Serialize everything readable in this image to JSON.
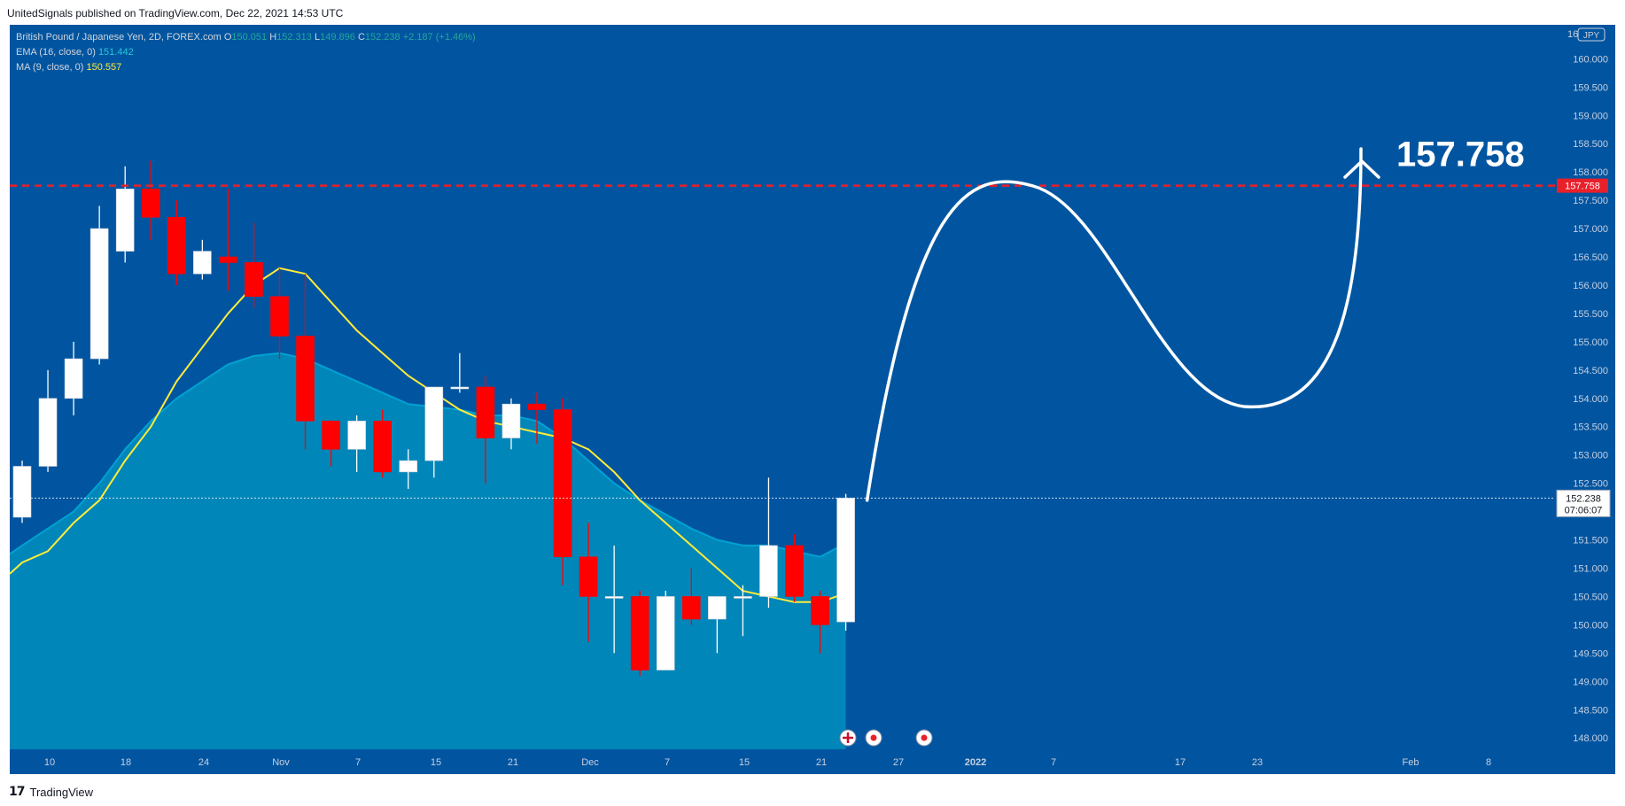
{
  "header": {
    "published": "UnitedSignals published on TradingView.com, Dec 22, 2021 14:53 UTC"
  },
  "footer": {
    "brand": "TradingView",
    "logo": "17"
  },
  "legend": {
    "symbol": "British Pound / Japanese Yen, 2D, FOREX.com",
    "o_label": "O",
    "o_value": "150.051",
    "h_label": "H",
    "h_value": "152.313",
    "l_label": "L",
    "l_value": "149.896",
    "c_label": "C",
    "c_value": "152.238",
    "change": "+2.187 (+1.46%)",
    "ema_label": "EMA (16, close, 0)",
    "ema_value": "151.442",
    "ma_label": "MA (9, close, 0)",
    "ma_value": "150.557"
  },
  "price_axis": {
    "currency": "JPY",
    "top_label": "16",
    "ticks": [
      "160.000",
      "159.500",
      "159.000",
      "158.500",
      "158.000",
      "157.500",
      "157.000",
      "156.500",
      "156.000",
      "155.500",
      "155.000",
      "154.500",
      "154.000",
      "153.500",
      "153.000",
      "152.500",
      "152.000",
      "151.500",
      "151.000",
      "150.500",
      "150.000",
      "149.500",
      "149.000",
      "148.500",
      "148.000"
    ],
    "current_price": "152.238",
    "countdown": "07:06:07",
    "target_price": "157.758"
  },
  "time_axis": {
    "labels": [
      "10",
      "18",
      "24",
      "Nov",
      "7",
      "15",
      "21",
      "Dec",
      "7",
      "15",
      "21",
      "27",
      "2022",
      "7",
      "17",
      "23",
      "Feb",
      "8"
    ]
  },
  "annotation": {
    "target_text": "157.758"
  },
  "colors": {
    "background": "#0155a0",
    "area_fill": "#0086b8",
    "area_line": "#00a2d4",
    "ma_line": "#ffeb3b",
    "bull": "#ffffff",
    "bear": "#ff0000",
    "target_line": "#e8202a",
    "projection": "#ffffff"
  },
  "icons": [
    "uk-flag-icon",
    "event-icon",
    "event-icon"
  ],
  "chart_data": {
    "type": "candlestick",
    "title": "British Pound / Japanese Yen, 2D, FOREX.com",
    "ylim": [
      147.8,
      160.6
    ],
    "x_labels": [
      "10",
      "18",
      "24",
      "Nov",
      "7",
      "15",
      "21",
      "Dec",
      "7",
      "15",
      "21",
      "27",
      "2022",
      "7",
      "17",
      "23",
      "Feb",
      "8"
    ],
    "candles": [
      {
        "o": 151.9,
        "h": 152.9,
        "l": 151.8,
        "c": 152.8
      },
      {
        "o": 152.8,
        "h": 154.5,
        "l": 152.7,
        "c": 154.0
      },
      {
        "o": 154.0,
        "h": 155.0,
        "l": 153.7,
        "c": 154.7
      },
      {
        "o": 154.7,
        "h": 157.4,
        "l": 154.6,
        "c": 157.0
      },
      {
        "o": 156.6,
        "h": 158.1,
        "l": 156.4,
        "c": 157.7
      },
      {
        "o": 157.7,
        "h": 158.2,
        "l": 156.8,
        "c": 157.2
      },
      {
        "o": 157.2,
        "h": 157.5,
        "l": 156.0,
        "c": 156.2
      },
      {
        "o": 156.2,
        "h": 156.8,
        "l": 156.1,
        "c": 156.6
      },
      {
        "o": 156.5,
        "h": 157.7,
        "l": 155.9,
        "c": 156.4
      },
      {
        "o": 156.4,
        "h": 157.1,
        "l": 155.6,
        "c": 155.8
      },
      {
        "o": 155.8,
        "h": 156.3,
        "l": 154.7,
        "c": 155.1
      },
      {
        "o": 155.1,
        "h": 156.2,
        "l": 153.1,
        "c": 153.6
      },
      {
        "o": 153.6,
        "h": 153.6,
        "l": 152.8,
        "c": 153.1
      },
      {
        "o": 153.1,
        "h": 153.7,
        "l": 152.7,
        "c": 153.6
      },
      {
        "o": 153.6,
        "h": 153.8,
        "l": 152.6,
        "c": 152.7
      },
      {
        "o": 152.7,
        "h": 153.1,
        "l": 152.4,
        "c": 152.9
      },
      {
        "o": 152.9,
        "h": 154.2,
        "l": 152.6,
        "c": 154.2
      },
      {
        "o": 154.2,
        "h": 154.8,
        "l": 154.1,
        "c": 154.2
      },
      {
        "o": 154.2,
        "h": 154.4,
        "l": 152.5,
        "c": 153.3
      },
      {
        "o": 153.3,
        "h": 154.0,
        "l": 153.1,
        "c": 153.9
      },
      {
        "o": 153.9,
        "h": 154.1,
        "l": 153.2,
        "c": 153.8
      },
      {
        "o": 153.8,
        "h": 154.0,
        "l": 150.7,
        "c": 151.2
      },
      {
        "o": 151.2,
        "h": 151.8,
        "l": 149.7,
        "c": 150.5
      },
      {
        "o": 150.5,
        "h": 151.4,
        "l": 149.5,
        "c": 150.5
      },
      {
        "o": 150.5,
        "h": 150.6,
        "l": 149.1,
        "c": 149.2
      },
      {
        "o": 149.2,
        "h": 150.6,
        "l": 149.2,
        "c": 150.5
      },
      {
        "o": 150.5,
        "h": 151.0,
        "l": 150.0,
        "c": 150.1
      },
      {
        "o": 150.1,
        "h": 150.5,
        "l": 149.5,
        "c": 150.5
      },
      {
        "o": 150.5,
        "h": 150.7,
        "l": 149.8,
        "c": 150.5
      },
      {
        "o": 150.5,
        "h": 152.6,
        "l": 150.3,
        "c": 151.4
      },
      {
        "o": 151.4,
        "h": 151.6,
        "l": 150.4,
        "c": 150.5
      },
      {
        "o": 150.5,
        "h": 150.6,
        "l": 149.5,
        "c": 150.0
      },
      {
        "o": 150.051,
        "h": 152.313,
        "l": 149.896,
        "c": 152.238
      }
    ],
    "ema_16": [
      151.4,
      151.7,
      152.0,
      152.5,
      153.1,
      153.6,
      154.0,
      154.3,
      154.6,
      154.75,
      154.8,
      154.7,
      154.5,
      154.3,
      154.1,
      153.9,
      153.85,
      153.8,
      153.7,
      153.7,
      153.6,
      153.3,
      152.9,
      152.5,
      152.2,
      151.95,
      151.7,
      151.5,
      151.4,
      151.4,
      151.3,
      151.2,
      151.442
    ],
    "ma_9": [
      151.1,
      151.3,
      151.8,
      152.2,
      152.9,
      153.5,
      154.3,
      154.9,
      155.5,
      156.0,
      156.3,
      156.2,
      155.7,
      155.2,
      154.8,
      154.4,
      154.1,
      153.8,
      153.6,
      153.5,
      153.4,
      153.3,
      153.1,
      152.7,
      152.2,
      151.8,
      151.4,
      151.0,
      150.6,
      150.5,
      150.4,
      150.4,
      150.557
    ],
    "target": 157.758,
    "current": 152.238
  }
}
